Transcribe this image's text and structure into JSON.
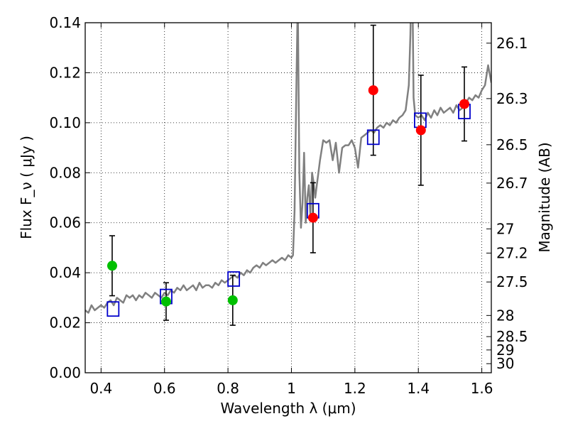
{
  "chart_data": {
    "type": "scatter",
    "xlabel": "Wavelength λ (μm)",
    "ylabel": "Flux F_ν ( μJy )",
    "y2label": "Magnitude (AB)",
    "xlim": [
      0.35,
      1.63
    ],
    "ylim": [
      0.0,
      0.14
    ],
    "xticks": [
      {
        "value": 0.4,
        "label": "0.4"
      },
      {
        "value": 0.6,
        "label": "0.6"
      },
      {
        "value": 0.8,
        "label": "0.8"
      },
      {
        "value": 1.0,
        "label": "1"
      },
      {
        "value": 1.2,
        "label": "1.2"
      },
      {
        "value": 1.4,
        "label": "1.4"
      },
      {
        "value": 1.6,
        "label": "1.6"
      }
    ],
    "yticks": [
      {
        "value": 0.0,
        "label": "0.00"
      },
      {
        "value": 0.02,
        "label": "0.02"
      },
      {
        "value": 0.04,
        "label": "0.04"
      },
      {
        "value": 0.06,
        "label": "0.06"
      },
      {
        "value": 0.08,
        "label": "0.08"
      },
      {
        "value": 0.1,
        "label": "0.10"
      },
      {
        "value": 0.12,
        "label": "0.12"
      },
      {
        "value": 0.14,
        "label": "0.14"
      }
    ],
    "y2ticks": [
      {
        "value": 26.1,
        "label": "26.1"
      },
      {
        "value": 26.3,
        "label": "26.3"
      },
      {
        "value": 26.5,
        "label": "26.5"
      },
      {
        "value": 26.7,
        "label": "26.7"
      },
      {
        "value": 27.0,
        "label": "27"
      },
      {
        "value": 27.2,
        "label": "27.2"
      },
      {
        "value": 27.5,
        "label": "27.5"
      },
      {
        "value": 28.0,
        "label": "28"
      },
      {
        "value": 28.5,
        "label": "28.5"
      },
      {
        "value": 29.0,
        "label": "29"
      },
      {
        "value": 30.0,
        "label": "30"
      }
    ],
    "grid": true,
    "colors": {
      "spectrum": "#808080",
      "green_points": "#00c000",
      "red_points": "#ff0000",
      "model_squares": "#0000cc",
      "error_bars": "#000000"
    },
    "spectrum": {
      "x": [
        0.35,
        0.36,
        0.37,
        0.38,
        0.39,
        0.4,
        0.41,
        0.42,
        0.43,
        0.44,
        0.45,
        0.46,
        0.47,
        0.48,
        0.49,
        0.5,
        0.51,
        0.52,
        0.53,
        0.54,
        0.55,
        0.56,
        0.57,
        0.58,
        0.59,
        0.6,
        0.61,
        0.62,
        0.63,
        0.64,
        0.65,
        0.66,
        0.67,
        0.68,
        0.69,
        0.7,
        0.71,
        0.72,
        0.73,
        0.74,
        0.75,
        0.76,
        0.77,
        0.78,
        0.79,
        0.8,
        0.81,
        0.82,
        0.83,
        0.84,
        0.85,
        0.86,
        0.87,
        0.88,
        0.89,
        0.9,
        0.91,
        0.92,
        0.93,
        0.94,
        0.95,
        0.96,
        0.97,
        0.98,
        0.99,
        1.0,
        1.005,
        1.01,
        1.015,
        1.02,
        1.025,
        1.03,
        1.035,
        1.04,
        1.045,
        1.05,
        1.055,
        1.06,
        1.065,
        1.07,
        1.075,
        1.08,
        1.09,
        1.1,
        1.11,
        1.12,
        1.13,
        1.14,
        1.15,
        1.16,
        1.17,
        1.18,
        1.19,
        1.2,
        1.21,
        1.22,
        1.23,
        1.24,
        1.25,
        1.26,
        1.27,
        1.28,
        1.29,
        1.3,
        1.31,
        1.32,
        1.33,
        1.34,
        1.35,
        1.36,
        1.37,
        1.375,
        1.38,
        1.385,
        1.39,
        1.4,
        1.41,
        1.42,
        1.43,
        1.44,
        1.45,
        1.46,
        1.47,
        1.48,
        1.49,
        1.5,
        1.51,
        1.52,
        1.53,
        1.54,
        1.55,
        1.56,
        1.57,
        1.58,
        1.59,
        1.6,
        1.61,
        1.62,
        1.63
      ],
      "y": [
        0.025,
        0.024,
        0.027,
        0.025,
        0.026,
        0.027,
        0.026,
        0.028,
        0.029,
        0.027,
        0.03,
        0.029,
        0.028,
        0.031,
        0.03,
        0.031,
        0.029,
        0.031,
        0.03,
        0.032,
        0.031,
        0.03,
        0.032,
        0.031,
        0.03,
        0.032,
        0.031,
        0.033,
        0.032,
        0.034,
        0.033,
        0.035,
        0.033,
        0.034,
        0.035,
        0.033,
        0.036,
        0.034,
        0.035,
        0.035,
        0.034,
        0.036,
        0.035,
        0.037,
        0.036,
        0.037,
        0.038,
        0.039,
        0.038,
        0.04,
        0.039,
        0.041,
        0.04,
        0.042,
        0.043,
        0.042,
        0.044,
        0.043,
        0.044,
        0.045,
        0.044,
        0.045,
        0.046,
        0.045,
        0.047,
        0.046,
        0.047,
        0.065,
        0.11,
        0.15,
        0.08,
        0.058,
        0.068,
        0.088,
        0.06,
        0.07,
        0.075,
        0.062,
        0.08,
        0.076,
        0.07,
        0.075,
        0.085,
        0.093,
        0.092,
        0.093,
        0.085,
        0.092,
        0.08,
        0.09,
        0.091,
        0.091,
        0.093,
        0.09,
        0.082,
        0.094,
        0.095,
        0.096,
        0.097,
        0.096,
        0.098,
        0.099,
        0.098,
        0.1,
        0.099,
        0.101,
        0.1,
        0.102,
        0.103,
        0.105,
        0.115,
        0.135,
        0.17,
        0.11,
        0.103,
        0.102,
        0.103,
        0.101,
        0.104,
        0.102,
        0.105,
        0.103,
        0.106,
        0.104,
        0.105,
        0.106,
        0.104,
        0.107,
        0.105,
        0.106,
        0.108,
        0.11,
        0.109,
        0.111,
        0.11,
        0.113,
        0.115,
        0.123,
        0.116
      ]
    },
    "green_points": [
      {
        "x": 0.435,
        "y": 0.0428,
        "err": 0.012
      },
      {
        "x": 0.605,
        "y": 0.0285,
        "err": 0.0075
      },
      {
        "x": 0.815,
        "y": 0.029,
        "err": 0.01
      }
    ],
    "red_points": [
      {
        "x": 1.068,
        "y": 0.062,
        "err": 0.014
      },
      {
        "x": 1.258,
        "y": 0.113,
        "err": 0.026
      },
      {
        "x": 1.408,
        "y": 0.097,
        "err": 0.022
      },
      {
        "x": 1.545,
        "y": 0.1075,
        "err": 0.0148
      }
    ],
    "model_squares": [
      {
        "x": 0.438,
        "y": 0.0255
      },
      {
        "x": 0.605,
        "y": 0.0305
      },
      {
        "x": 0.818,
        "y": 0.0375
      },
      {
        "x": 1.068,
        "y": 0.0648
      },
      {
        "x": 1.258,
        "y": 0.0942
      },
      {
        "x": 1.406,
        "y": 0.101
      },
      {
        "x": 1.545,
        "y": 0.1045
      }
    ]
  }
}
